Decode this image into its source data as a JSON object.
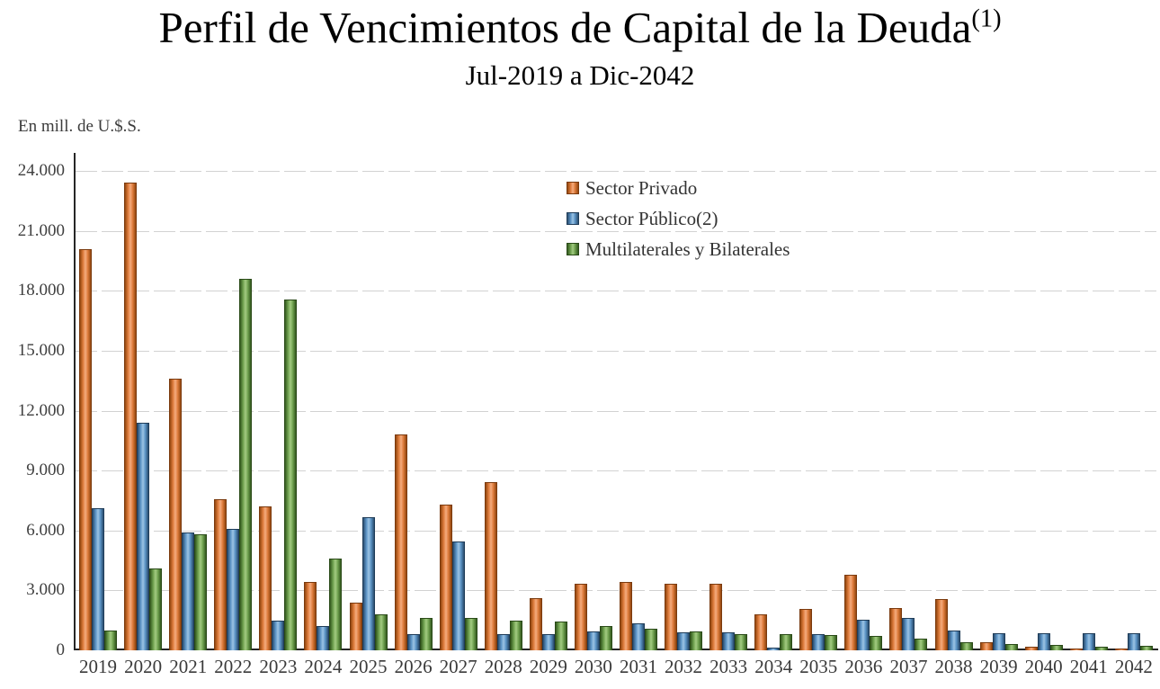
{
  "chart_data": {
    "type": "bar",
    "title": "Perfil de Vencimientos de Capital de la Deuda",
    "title_superscript": "(1)",
    "subtitle": "Jul-2019 a Dic-2042",
    "units_label": "En mill. de U.$.S.",
    "ylim": [
      0,
      24000
    ],
    "ytick_step": 3000,
    "ytick_labels_top_to_bottom": [
      "24.000",
      "21.000",
      "18.000",
      "15.000",
      "12.000",
      "9.000",
      "6.000",
      "3.000",
      "0"
    ],
    "grid": "horizontal-dashed",
    "legend_position": "top-right-inside",
    "categories": [
      "2019",
      "2020",
      "2021",
      "2022",
      "2023",
      "2024",
      "2025",
      "2026",
      "2027",
      "2028",
      "2029",
      "2030",
      "2031",
      "2032",
      "2033",
      "2034",
      "2035",
      "2036",
      "2037",
      "2038",
      "2039",
      "2040",
      "2041",
      "2042"
    ],
    "series": [
      {
        "key": "priv",
        "name": "Sector Privado",
        "color": "#dd7b3c",
        "values": [
          20100,
          23400,
          13600,
          7550,
          7200,
          3400,
          2400,
          10800,
          7300,
          8400,
          2600,
          3350,
          3400,
          3350,
          3350,
          1800,
          2050,
          3800,
          2100,
          2550,
          400,
          180,
          50,
          60
        ]
      },
      {
        "key": "pub",
        "name": "Sector Público(2)",
        "color": "#5b93c5",
        "values": [
          7100,
          11400,
          5900,
          6100,
          1500,
          1200,
          6650,
          800,
          5450,
          800,
          800,
          950,
          1350,
          900,
          900,
          150,
          800,
          1550,
          1600,
          1000,
          850,
          850,
          850,
          850
        ]
      },
      {
        "key": "multi",
        "name": "Multilaterales y Bilaterales",
        "color": "#6fa14f",
        "values": [
          1000,
          4100,
          5800,
          18600,
          17550,
          4600,
          1800,
          1600,
          1600,
          1500,
          1450,
          1200,
          1100,
          950,
          800,
          800,
          750,
          700,
          600,
          420,
          320,
          250,
          200,
          220
        ]
      }
    ]
  }
}
